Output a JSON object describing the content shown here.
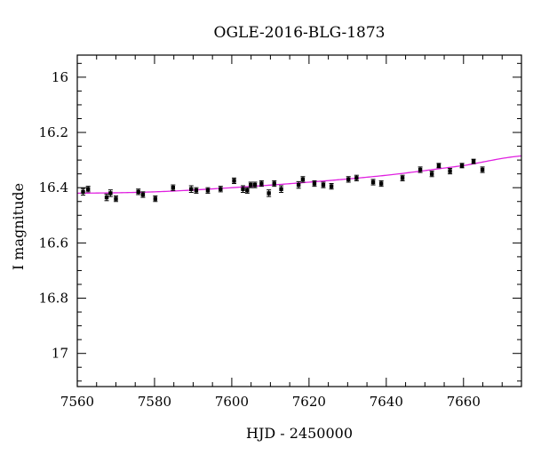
{
  "chart_data": {
    "type": "scatter",
    "title": "OGLE-2016-BLG-1873",
    "xlabel": "HJD - 2450000",
    "ylabel": "I magnitude",
    "xlim": [
      7560,
      7675
    ],
    "ylim": [
      17.12,
      15.92
    ],
    "y_inverted": true,
    "grid": false,
    "x_ticks": [
      7560,
      7580,
      7600,
      7620,
      7640,
      7660
    ],
    "y_ticks": [
      16,
      16.2,
      16.4,
      16.6,
      16.8,
      17
    ],
    "x_tick_labels": [
      "7560",
      "7580",
      "7600",
      "7620",
      "7640",
      "7660"
    ],
    "y_tick_labels": [
      "16",
      "16.2",
      "16.4",
      "16.6",
      "16.8",
      "17"
    ],
    "series": [
      {
        "kind": "points",
        "color": "#000000",
        "x": [
          7561.5,
          7562.8,
          7567.6,
          7568.6,
          7570.0,
          7575.8,
          7577.0,
          7580.2,
          7584.8,
          7589.5,
          7590.8,
          7593.8,
          7597.1,
          7600.6,
          7602.9,
          7604.0,
          7604.9,
          7606.0,
          7607.7,
          7609.6,
          7611.0,
          7612.8,
          7617.3,
          7618.4,
          7621.4,
          7623.7,
          7625.8,
          7630.2,
          7632.3,
          7636.6,
          7638.7,
          7644.2,
          7648.8,
          7651.8,
          7653.6,
          7656.5,
          7659.6,
          7662.6,
          7664.9
        ],
        "y": [
          16.415,
          16.405,
          16.435,
          16.42,
          16.44,
          16.415,
          16.425,
          16.44,
          16.4,
          16.405,
          16.41,
          16.41,
          16.405,
          16.375,
          16.405,
          16.41,
          16.39,
          16.39,
          16.385,
          16.42,
          16.385,
          16.405,
          16.39,
          16.37,
          16.385,
          16.39,
          16.395,
          16.37,
          16.365,
          16.38,
          16.385,
          16.365,
          16.335,
          16.35,
          16.32,
          16.34,
          16.32,
          16.305,
          16.335
        ],
        "err": [
          0.012,
          0.01,
          0.012,
          0.012,
          0.01,
          0.01,
          0.01,
          0.01,
          0.01,
          0.012,
          0.01,
          0.01,
          0.01,
          0.01,
          0.012,
          0.01,
          0.01,
          0.01,
          0.01,
          0.012,
          0.01,
          0.012,
          0.012,
          0.01,
          0.01,
          0.01,
          0.01,
          0.01,
          0.01,
          0.01,
          0.01,
          0.01,
          0.01,
          0.01,
          0.008,
          0.01,
          0.008,
          0.008,
          0.01
        ]
      },
      {
        "kind": "model",
        "color": "#e020e0",
        "x": [
          7560,
          7580,
          7600,
          7620,
          7640,
          7660,
          7675
        ],
        "y": [
          16.42,
          16.415,
          16.4,
          16.38,
          16.355,
          16.32,
          16.285
        ]
      }
    ]
  }
}
